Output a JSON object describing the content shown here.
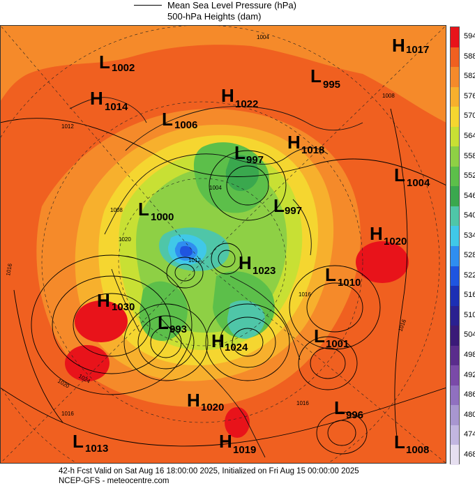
{
  "header": {
    "legend_title": "Mean Sea Level Pressure (hPa)",
    "legend_subtitle": "500-hPa Heights (dam)"
  },
  "scale": {
    "labels": [
      "594",
      "588",
      "582",
      "576",
      "570",
      "564",
      "558",
      "552",
      "546",
      "540",
      "534",
      "528",
      "522",
      "516",
      "510",
      "504",
      "498",
      "492",
      "486",
      "480",
      "474",
      "468"
    ],
    "colors": [
      "#e8131a",
      "#f06020",
      "#f58a2a",
      "#f7b02d",
      "#f5d630",
      "#c8e034",
      "#8ed045",
      "#5cbf4a",
      "#3aa84e",
      "#4fc6a8",
      "#40c8e8",
      "#2f8ef0",
      "#1f55e0",
      "#1c2fb4",
      "#2a2090",
      "#3a1a78",
      "#5a2c8c",
      "#7a4aa8",
      "#9070c0",
      "#a896d0",
      "#c2b6e0",
      "#e6dff0"
    ]
  },
  "systems": [
    {
      "kind": "H",
      "value": "1017"
    },
    {
      "kind": "L",
      "value": "1002"
    },
    {
      "kind": "L",
      "value": "995"
    },
    {
      "kind": "H",
      "value": "1014"
    },
    {
      "kind": "H",
      "value": "1022"
    },
    {
      "kind": "L",
      "value": "1006"
    },
    {
      "kind": "H",
      "value": "1018"
    },
    {
      "kind": "L",
      "value": "997"
    },
    {
      "kind": "L",
      "value": "1004"
    },
    {
      "kind": "L",
      "value": "1000"
    },
    {
      "kind": "L",
      "value": "997"
    },
    {
      "kind": "H",
      "value": "1020"
    },
    {
      "kind": "H",
      "value": "1023"
    },
    {
      "kind": "L",
      "value": "1010"
    },
    {
      "kind": "H",
      "value": "1030"
    },
    {
      "kind": "L",
      "value": "993"
    },
    {
      "kind": "H",
      "value": "1024"
    },
    {
      "kind": "L",
      "value": "1001"
    },
    {
      "kind": "H",
      "value": "1020"
    },
    {
      "kind": "L",
      "value": "996"
    },
    {
      "kind": "L",
      "value": "1013"
    },
    {
      "kind": "H",
      "value": "1019"
    },
    {
      "kind": "L",
      "value": "1008"
    }
  ],
  "isobar_labels": [
    "1004",
    "1008",
    "1012",
    "1016",
    "1020",
    "1024",
    "1020",
    "1016",
    "1016",
    "1004",
    "1008",
    "1016",
    "1012",
    "1016"
  ],
  "footer": {
    "line1": "42-h Fcst Valid on Sat Aug 16 18:00:00 2025, Initialized on Fri Aug 15 00:00:00 2025",
    "line2": "NCEP-GFS  -  meteocentre.com"
  }
}
